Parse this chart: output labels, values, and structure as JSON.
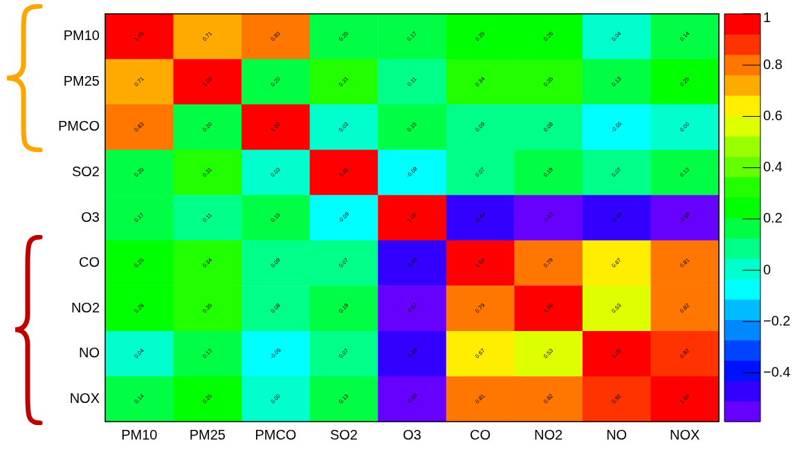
{
  "chart_data": {
    "type": "heatmap",
    "categories": [
      "PM10",
      "PM25",
      "PMCO",
      "SO2",
      "O3",
      "CO",
      "NO2",
      "NO",
      "NOX"
    ],
    "y_categories": [
      "PM10",
      "PM25",
      "PMCO",
      "SO2",
      "O3",
      "CO",
      "NO2",
      "NO",
      "NOX"
    ],
    "cells": [
      [
        1.0,
        0.71,
        0.83,
        0.2,
        0.17,
        0.25,
        0.26,
        0.04,
        0.14
      ],
      [
        0.71,
        1.0,
        0.2,
        0.31,
        0.11,
        0.34,
        0.35,
        0.13,
        0.25
      ],
      [
        0.83,
        0.2,
        1.0,
        0.03,
        0.15,
        0.09,
        0.08,
        -0.05,
        0.0
      ],
      [
        0.2,
        0.31,
        0.03,
        1.0,
        -0.09,
        0.07,
        0.19,
        0.07,
        0.13
      ],
      [
        0.17,
        0.11,
        0.15,
        -0.09,
        1.0,
        -0.44,
        -0.57,
        -0.49,
        -0.59
      ],
      [
        0.25,
        0.34,
        0.09,
        0.07,
        -0.44,
        1.0,
        0.79,
        0.67,
        0.81
      ],
      [
        0.26,
        0.35,
        0.08,
        0.19,
        -0.57,
        0.79,
        1.0,
        0.53,
        0.82
      ],
      [
        0.04,
        0.13,
        -0.05,
        0.07,
        -0.49,
        0.67,
        0.53,
        1.0,
        0.92
      ],
      [
        0.14,
        0.25,
        0.0,
        0.13,
        -0.59,
        0.81,
        0.82,
        0.92,
        1.0
      ]
    ],
    "cell_labels": [
      [
        "1.00",
        "0.71",
        "0.83",
        "0.20",
        "0.17",
        "0.25",
        "0.26",
        "0.04",
        "0.14"
      ],
      [
        "0.71",
        "1.00",
        "0.20",
        "0.31",
        "0.11",
        "0.34",
        "0.35",
        "0.13",
        "0.25"
      ],
      [
        "0.83",
        "0.20",
        "1.00",
        "0.03",
        "0.15",
        "0.09",
        "0.08",
        "-0.05",
        "0.00"
      ],
      [
        "0.20",
        "0.31",
        "0.03",
        "1.00",
        "-0.09",
        "0.07",
        "0.19",
        "0.07",
        "0.13"
      ],
      [
        "0.17",
        "0.11",
        "0.15",
        "-0.09",
        "1.00",
        "-0.44",
        "-0.57",
        "-0.49",
        "-0.59"
      ],
      [
        "0.25",
        "0.34",
        "0.09",
        "0.07",
        "-0.44",
        "1.00",
        "0.79",
        "0.67",
        "0.81"
      ],
      [
        "0.26",
        "0.35",
        "0.08",
        "0.19",
        "-0.57",
        "0.79",
        "1.00",
        "0.53",
        "0.82"
      ],
      [
        "0.04",
        "0.13",
        "-0.05",
        "0.07",
        "-0.49",
        "0.67",
        "0.53",
        "1.00",
        "0.92"
      ],
      [
        "0.14",
        "0.25",
        "0.00",
        "0.13",
        "-0.59",
        "0.81",
        "0.82",
        "0.92",
        "1.00"
      ]
    ],
    "clim": [
      -0.59,
      1
    ],
    "cticks": [
      1,
      0.8,
      0.6,
      0.4,
      0.2,
      0,
      {
        "value": -0.2,
        "label": "−0.2"
      },
      {
        "value": -0.4,
        "label": "−0.4"
      }
    ],
    "legend": false
  }
}
